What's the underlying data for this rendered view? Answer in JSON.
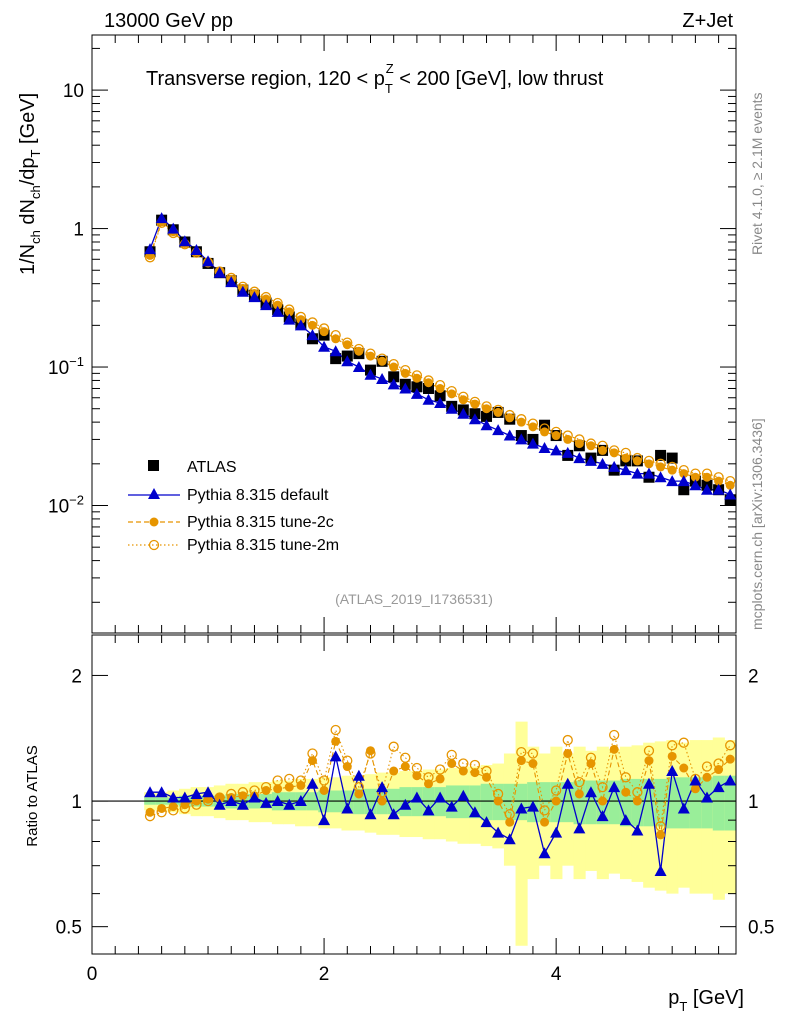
{
  "header": {
    "energy_label": "13000 GeV pp",
    "process_label": "Z+Jet"
  },
  "side_labels": {
    "rivet": "Rivet 4.1.0, ≥ 2.1M events",
    "mcplots": "mcplots.cern.ch [arXiv:1306.3436]"
  },
  "chart_data": [
    {
      "type": "scatter",
      "panel": "main",
      "title": "Transverse region, 120 < p_T^Z < 200 [GeV], low thrust",
      "ylabel": "1/N_ch dN_ch/dp_T [GeV]",
      "yscale": "log",
      "ylim": [
        0.0012,
        25
      ],
      "xlim": [
        0,
        5.55
      ],
      "y_ticks": [
        {
          "value": 10,
          "label": "10"
        },
        {
          "value": 1,
          "label": "1"
        },
        {
          "value": 0.1,
          "label": "10^-1"
        },
        {
          "value": 0.01,
          "label": "10^-2"
        }
      ],
      "analysis_tag": "(ATLAS_2019_I1736531)",
      "legend": [
        "ATLAS",
        "Pythia 8.315 default",
        "Pythia 8.315 tune-2c",
        "Pythia 8.315 tune-2m"
      ],
      "colors": {
        "atlas": "#000000",
        "default": "#0000cc",
        "tune2c": "#e69500",
        "tune2m": "#e69500"
      },
      "x": [
        0.5,
        0.6,
        0.7,
        0.8,
        0.9,
        1.0,
        1.1,
        1.2,
        1.3,
        1.4,
        1.5,
        1.6,
        1.7,
        1.8,
        1.9,
        2.0,
        2.1,
        2.2,
        2.3,
        2.4,
        2.5,
        2.6,
        2.7,
        2.8,
        2.9,
        3.0,
        3.1,
        3.2,
        3.3,
        3.4,
        3.5,
        3.6,
        3.7,
        3.8,
        3.9,
        4.0,
        4.1,
        4.2,
        4.3,
        4.4,
        4.5,
        4.6,
        4.7,
        4.8,
        4.9,
        5.0,
        5.1,
        5.2,
        5.3,
        5.4,
        5.5
      ],
      "series": [
        {
          "name": "ATLAS",
          "values": [
            0.68,
            1.15,
            0.98,
            0.8,
            0.68,
            0.56,
            0.48,
            0.42,
            0.36,
            0.33,
            0.29,
            0.26,
            0.23,
            0.205,
            0.16,
            0.17,
            0.115,
            0.12,
            0.125,
            0.095,
            0.11,
            0.085,
            0.075,
            0.072,
            0.07,
            0.062,
            0.052,
            0.049,
            0.046,
            0.044,
            0.047,
            0.042,
            0.032,
            0.03,
            0.038,
            0.032,
            0.023,
            0.027,
            0.022,
            0.025,
            0.018,
            0.021,
            0.021,
            0.016,
            0.023,
            0.022,
            0.013,
            0.015,
            0.014,
            0.013,
            0.011
          ]
        },
        {
          "name": "Pythia 8.315 default",
          "values": [
            0.71,
            1.19,
            1.0,
            0.81,
            0.7,
            0.58,
            0.48,
            0.41,
            0.35,
            0.32,
            0.28,
            0.25,
            0.22,
            0.2,
            0.17,
            0.14,
            0.13,
            0.11,
            0.1,
            0.088,
            0.082,
            0.075,
            0.07,
            0.064,
            0.058,
            0.055,
            0.05,
            0.046,
            0.042,
            0.038,
            0.035,
            0.032,
            0.03,
            0.028,
            0.026,
            0.025,
            0.024,
            0.022,
            0.021,
            0.02,
            0.019,
            0.018,
            0.017,
            0.017,
            0.016,
            0.015,
            0.015,
            0.014,
            0.013,
            0.013,
            0.012
          ]
        },
        {
          "name": "Pythia 8.315 tune-2c",
          "values": [
            0.64,
            1.12,
            0.95,
            0.78,
            0.68,
            0.57,
            0.49,
            0.43,
            0.37,
            0.34,
            0.31,
            0.28,
            0.25,
            0.22,
            0.2,
            0.18,
            0.16,
            0.145,
            0.13,
            0.12,
            0.11,
            0.1,
            0.09,
            0.083,
            0.077,
            0.07,
            0.064,
            0.058,
            0.054,
            0.05,
            0.047,
            0.043,
            0.04,
            0.037,
            0.034,
            0.032,
            0.03,
            0.028,
            0.027,
            0.025,
            0.024,
            0.022,
            0.021,
            0.02,
            0.019,
            0.018,
            0.017,
            0.016,
            0.016,
            0.015,
            0.014
          ]
        },
        {
          "name": "Pythia 8.315 tune-2m",
          "values": [
            0.62,
            1.1,
            0.93,
            0.77,
            0.67,
            0.57,
            0.49,
            0.44,
            0.38,
            0.35,
            0.32,
            0.29,
            0.26,
            0.23,
            0.21,
            0.19,
            0.17,
            0.15,
            0.135,
            0.125,
            0.115,
            0.105,
            0.095,
            0.087,
            0.08,
            0.074,
            0.067,
            0.061,
            0.056,
            0.052,
            0.049,
            0.045,
            0.042,
            0.039,
            0.036,
            0.034,
            0.032,
            0.03,
            0.028,
            0.027,
            0.025,
            0.024,
            0.022,
            0.021,
            0.02,
            0.019,
            0.018,
            0.017,
            0.017,
            0.016,
            0.015
          ]
        }
      ]
    },
    {
      "type": "line",
      "panel": "ratio",
      "ylabel": "Ratio to ATLAS",
      "xlabel": "p_T [GeV]",
      "ylim": [
        0.43,
        2.5
      ],
      "xlim": [
        0,
        5.55
      ],
      "x_ticks": [
        0,
        2,
        4
      ],
      "y_ticks": [
        0.5,
        1,
        2
      ],
      "x": [
        0.5,
        0.6,
        0.7,
        0.8,
        0.9,
        1.0,
        1.1,
        1.2,
        1.3,
        1.4,
        1.5,
        1.6,
        1.7,
        1.8,
        1.9,
        2.0,
        2.1,
        2.2,
        2.3,
        2.4,
        2.5,
        2.6,
        2.7,
        2.8,
        2.9,
        3.0,
        3.1,
        3.2,
        3.3,
        3.4,
        3.5,
        3.6,
        3.7,
        3.8,
        3.9,
        4.0,
        4.1,
        4.2,
        4.3,
        4.4,
        4.5,
        4.6,
        4.7,
        4.8,
        4.9,
        5.0,
        5.1,
        5.2,
        5.3,
        5.4,
        5.5
      ],
      "band_stat_halfwidth": [
        0.02,
        0.02,
        0.02,
        0.03,
        0.03,
        0.03,
        0.03,
        0.04,
        0.04,
        0.04,
        0.04,
        0.05,
        0.05,
        0.05,
        0.05,
        0.06,
        0.06,
        0.06,
        0.07,
        0.07,
        0.07,
        0.07,
        0.08,
        0.08,
        0.08,
        0.08,
        0.09,
        0.09,
        0.09,
        0.1,
        0.1,
        0.1,
        0.1,
        0.11,
        0.11,
        0.11,
        0.11,
        0.12,
        0.12,
        0.12,
        0.12,
        0.13,
        0.13,
        0.13,
        0.13,
        0.14,
        0.14,
        0.14,
        0.14,
        0.15,
        0.15
      ],
      "band_total_halfwidth": [
        0.05,
        0.05,
        0.06,
        0.07,
        0.08,
        0.08,
        0.09,
        0.1,
        0.1,
        0.11,
        0.11,
        0.12,
        0.12,
        0.13,
        0.13,
        0.14,
        0.14,
        0.15,
        0.15,
        0.16,
        0.17,
        0.17,
        0.18,
        0.18,
        0.19,
        0.19,
        0.2,
        0.21,
        0.21,
        0.22,
        0.23,
        0.3,
        0.55,
        0.35,
        0.3,
        0.35,
        0.3,
        0.35,
        0.32,
        0.35,
        0.33,
        0.35,
        0.36,
        0.38,
        0.39,
        0.4,
        0.38,
        0.4,
        0.4,
        0.42,
        0.4
      ],
      "series": [
        {
          "name": "Pythia 8.315 default",
          "values": [
            1.05,
            1.05,
            1.02,
            1.02,
            1.04,
            1.05,
            0.98,
            1.0,
            0.98,
            1.02,
            0.99,
            1.0,
            0.98,
            1.0,
            1.1,
            0.9,
            1.28,
            0.96,
            1.15,
            0.93,
            1.08,
            0.93,
            0.98,
            1.02,
            0.95,
            1.02,
            0.97,
            1.03,
            0.94,
            0.89,
            0.84,
            0.81,
            0.96,
            0.97,
            0.75,
            0.84,
            1.1,
            0.86,
            1.05,
            0.92,
            1.08,
            0.9,
            0.85,
            1.1,
            0.68,
            1.18,
            0.96,
            1.12,
            1.02,
            1.08,
            1.12
          ]
        },
        {
          "name": "Pythia 8.315 tune-2c",
          "values": [
            0.94,
            0.96,
            0.97,
            0.98,
            1.0,
            1.01,
            1.02,
            1.02,
            1.03,
            1.03,
            1.06,
            1.07,
            1.08,
            1.09,
            1.25,
            1.06,
            1.39,
            1.21,
            1.04,
            1.32,
            1.0,
            1.18,
            1.21,
            1.15,
            1.1,
            1.13,
            1.23,
            1.18,
            1.17,
            1.14,
            1.0,
            0.89,
            1.25,
            1.23,
            0.89,
            1.0,
            1.3,
            1.04,
            1.23,
            1.0,
            1.33,
            1.05,
            1.0,
            1.25,
            0.83,
            1.28,
            1.2,
            1.07,
            1.14,
            1.19,
            1.26
          ]
        },
        {
          "name": "Pythia 8.315 tune-2m",
          "values": [
            0.92,
            0.94,
            0.95,
            0.96,
            0.98,
            1.0,
            1.02,
            1.04,
            1.05,
            1.06,
            1.08,
            1.12,
            1.13,
            1.12,
            1.3,
            1.12,
            1.48,
            1.25,
            1.08,
            1.3,
            1.05,
            1.35,
            1.27,
            1.2,
            1.14,
            1.19,
            1.29,
            1.23,
            1.22,
            1.18,
            1.04,
            0.93,
            1.31,
            1.3,
            0.95,
            1.06,
            1.4,
            1.11,
            1.27,
            1.08,
            1.44,
            1.14,
            1.05,
            1.32,
            0.87,
            1.36,
            1.38,
            1.13,
            1.21,
            1.23,
            1.36
          ]
        }
      ]
    }
  ]
}
